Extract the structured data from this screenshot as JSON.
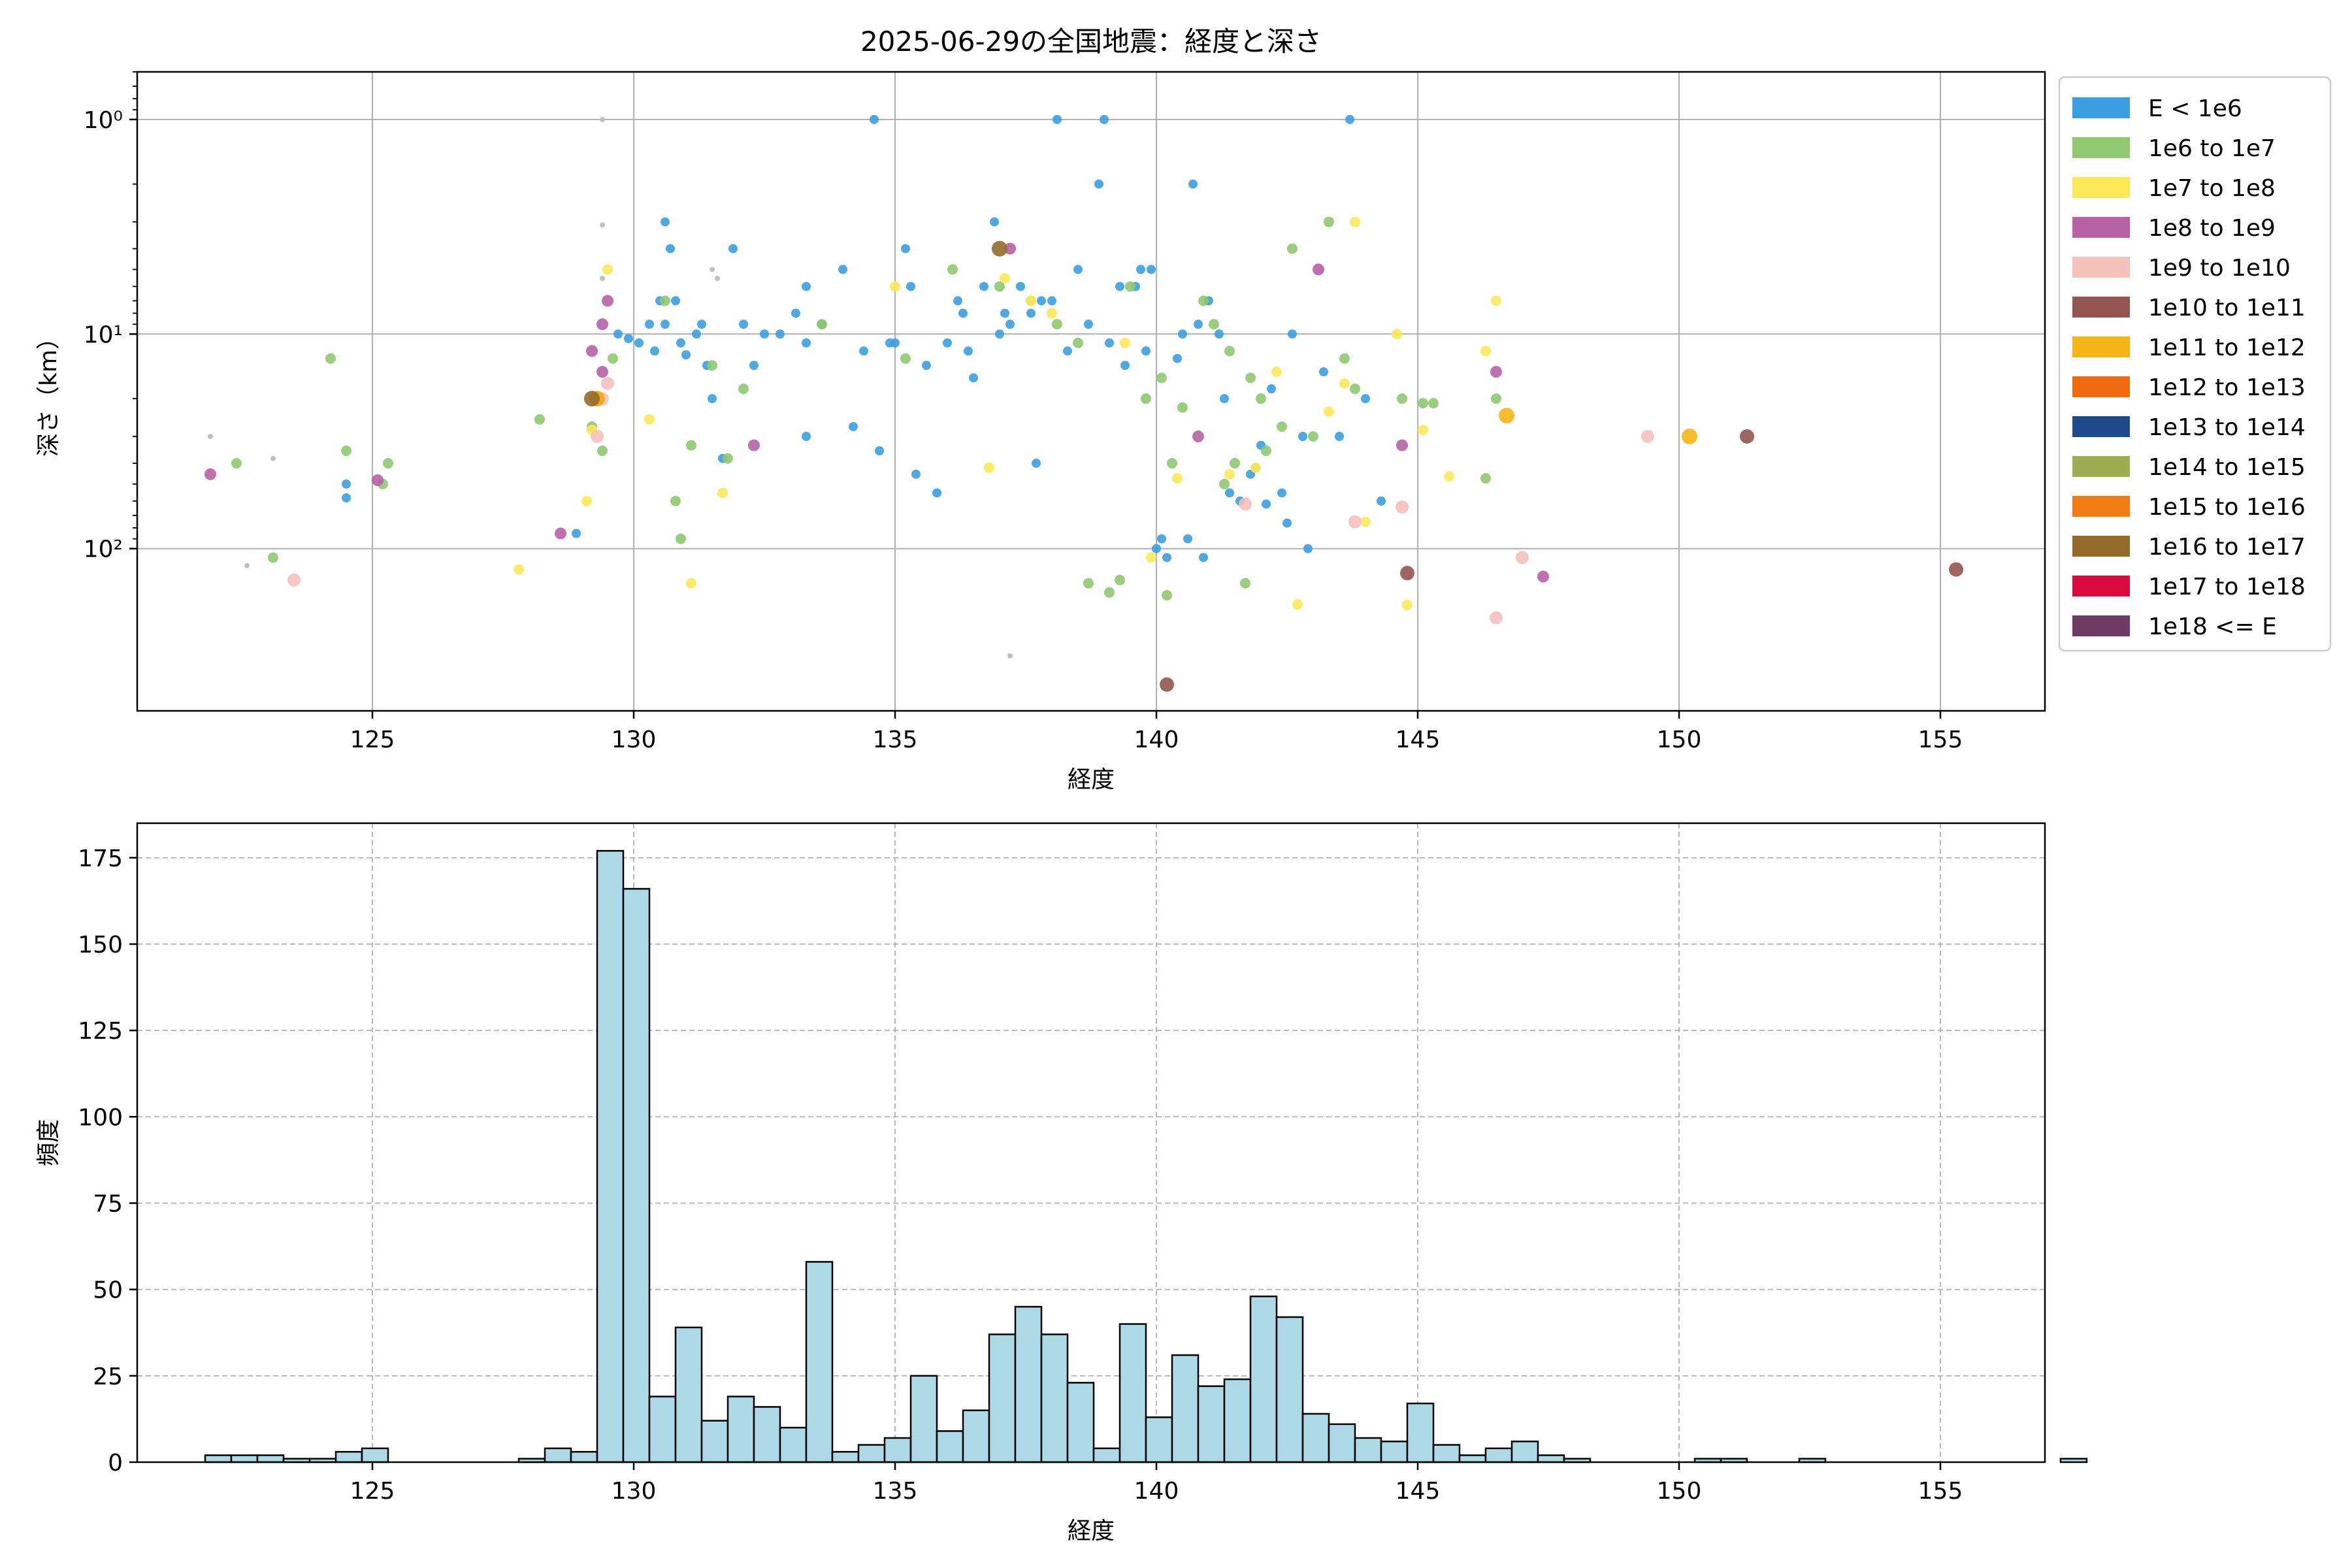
{
  "title": "2025-06-29の全国地震：経度と深さ",
  "chart_data": [
    {
      "type": "scatter",
      "title": "2025-06-29の全国地震：経度と深さ",
      "xlabel": "経度",
      "ylabel": "深さ（km）",
      "xlim": [
        120.5,
        157.0
      ],
      "ylim": [
        0.6,
        570
      ],
      "yscale": "log",
      "yaxis_inverted": true,
      "x_ticks": [
        "125",
        "130",
        "135",
        "140",
        "145",
        "150",
        "155"
      ],
      "y_ticks": [
        "10⁰",
        "10¹",
        "10²"
      ],
      "grid": true,
      "legend_position": "right, outside",
      "legend": [
        {
          "label": "E < 1e6",
          "color": "#3b9ede"
        },
        {
          "label": "1e6 to 1e7",
          "color": "#8fc870"
        },
        {
          "label": "1e7 to 1e8",
          "color": "#fde85a"
        },
        {
          "label": "1e8 to 1e9",
          "color": "#b862a6"
        },
        {
          "label": "1e9 to 1e10",
          "color": "#f5c1bb"
        },
        {
          "label": "1e10 to 1e11",
          "color": "#945550"
        },
        {
          "label": "1e11 to 1e12",
          "color": "#f7b417"
        },
        {
          "label": "1e12 to 1e13",
          "color": "#ef6a0f"
        },
        {
          "label": "1e13 to 1e14",
          "color": "#1e4a8d"
        },
        {
          "label": "1e14 to 1e15",
          "color": "#9ead53"
        },
        {
          "label": "1e15 to 1e16",
          "color": "#ef7d13"
        },
        {
          "label": "1e16 to 1e17",
          "color": "#946a2b"
        },
        {
          "label": "1e17 to 1e18",
          "color": "#d90a40"
        },
        {
          "label": "1e18 <= E",
          "color": "#703a66"
        }
      ],
      "small_gray_points": [
        [
          121.9,
          30
        ],
        [
          122.6,
          120
        ],
        [
          123.1,
          38
        ],
        [
          129.4,
          1.0
        ],
        [
          129.4,
          3.1
        ],
        [
          129.4,
          5.5
        ],
        [
          131.5,
          5
        ],
        [
          131.6,
          5.5
        ],
        [
          137.2,
          316
        ]
      ],
      "series": [
        {
          "label": "E < 1e6",
          "points": [
            [
              124.5,
              50
            ],
            [
              124.5,
              58
            ],
            [
              128.9,
              85
            ],
            [
              129.7,
              10
            ],
            [
              129.9,
              10.5
            ],
            [
              130.1,
              11
            ],
            [
              130.3,
              9
            ],
            [
              130.4,
              12
            ],
            [
              130.5,
              7
            ],
            [
              130.6,
              3
            ],
            [
              130.6,
              9
            ],
            [
              130.7,
              4
            ],
            [
              130.8,
              7
            ],
            [
              130.9,
              11
            ],
            [
              131.0,
              12.5
            ],
            [
              131.2,
              10
            ],
            [
              131.3,
              9
            ],
            [
              131.4,
              14
            ],
            [
              131.5,
              20
            ],
            [
              131.7,
              38
            ],
            [
              131.9,
              4
            ],
            [
              132.1,
              9
            ],
            [
              132.3,
              14
            ],
            [
              132.5,
              10
            ],
            [
              132.8,
              10
            ],
            [
              133.1,
              8
            ],
            [
              133.3,
              6
            ],
            [
              133.3,
              11
            ],
            [
              133.3,
              30
            ],
            [
              133.6,
              9
            ],
            [
              134.0,
              5
            ],
            [
              134.2,
              27
            ],
            [
              134.4,
              12
            ],
            [
              134.6,
              1.0
            ],
            [
              134.7,
              35
            ],
            [
              134.9,
              11
            ],
            [
              135.0,
              11
            ],
            [
              135.2,
              4
            ],
            [
              135.3,
              6
            ],
            [
              135.4,
              45
            ],
            [
              135.6,
              14
            ],
            [
              135.8,
              55
            ],
            [
              136.0,
              11
            ],
            [
              136.2,
              7
            ],
            [
              136.3,
              8
            ],
            [
              136.4,
              12
            ],
            [
              136.5,
              16
            ],
            [
              136.7,
              6
            ],
            [
              136.9,
              3
            ],
            [
              137.0,
              10
            ],
            [
              137.1,
              8
            ],
            [
              137.2,
              9
            ],
            [
              137.4,
              6
            ],
            [
              137.6,
              8
            ],
            [
              137.7,
              40
            ],
            [
              137.8,
              7
            ],
            [
              138.0,
              7
            ],
            [
              138.1,
              1.0
            ],
            [
              138.3,
              12
            ],
            [
              138.5,
              5
            ],
            [
              138.7,
              9
            ],
            [
              138.9,
              2
            ],
            [
              139.0,
              1.0
            ],
            [
              139.1,
              11
            ],
            [
              139.3,
              6
            ],
            [
              139.4,
              14
            ],
            [
              139.6,
              6
            ],
            [
              139.7,
              5
            ],
            [
              139.8,
              12
            ],
            [
              139.9,
              5
            ],
            [
              140.0,
              100
            ],
            [
              140.1,
              90
            ],
            [
              140.2,
              110
            ],
            [
              140.4,
              13
            ],
            [
              140.5,
              10
            ],
            [
              140.6,
              90
            ],
            [
              140.7,
              2
            ],
            [
              140.8,
              9
            ],
            [
              140.9,
              110
            ],
            [
              141.0,
              7
            ],
            [
              141.2,
              10
            ],
            [
              141.3,
              20
            ],
            [
              141.4,
              55
            ],
            [
              141.6,
              60
            ],
            [
              141.8,
              45
            ],
            [
              141.9,
              42
            ],
            [
              142.0,
              33
            ],
            [
              142.1,
              62
            ],
            [
              142.2,
              18
            ],
            [
              142.4,
              55
            ],
            [
              142.5,
              76
            ],
            [
              142.6,
              10
            ],
            [
              142.8,
              30
            ],
            [
              142.9,
              100
            ],
            [
              143.2,
              15
            ],
            [
              143.5,
              30
            ],
            [
              143.7,
              1.0
            ],
            [
              144.0,
              20
            ],
            [
              144.3,
              60
            ]
          ]
        },
        {
          "label": "1e6 to 1e7",
          "points": [
            [
              122.4,
              40
            ],
            [
              123.1,
              110
            ],
            [
              124.2,
              13
            ],
            [
              124.5,
              35
            ],
            [
              125.2,
              50
            ],
            [
              125.3,
              40
            ],
            [
              128.2,
              25
            ],
            [
              129.2,
              27
            ],
            [
              129.4,
              35
            ],
            [
              129.6,
              13
            ],
            [
              130.6,
              7
            ],
            [
              130.8,
              60
            ],
            [
              130.9,
              90
            ],
            [
              131.1,
              33
            ],
            [
              131.5,
              14
            ],
            [
              131.8,
              38
            ],
            [
              132.1,
              18
            ],
            [
              133.6,
              9
            ],
            [
              135.2,
              13
            ],
            [
              136.1,
              5
            ],
            [
              137.0,
              6
            ],
            [
              137.6,
              7
            ],
            [
              138.1,
              9
            ],
            [
              138.5,
              11
            ],
            [
              138.7,
              145
            ],
            [
              139.1,
              160
            ],
            [
              139.3,
              140
            ],
            [
              139.5,
              6
            ],
            [
              139.8,
              20
            ],
            [
              140.1,
              16
            ],
            [
              140.2,
              165
            ],
            [
              140.3,
              40
            ],
            [
              140.5,
              22
            ],
            [
              140.9,
              7
            ],
            [
              141.1,
              9
            ],
            [
              141.3,
              50
            ],
            [
              141.4,
              12
            ],
            [
              141.5,
              40
            ],
            [
              141.7,
              145
            ],
            [
              141.8,
              16
            ],
            [
              142.0,
              20
            ],
            [
              142.1,
              35
            ],
            [
              142.4,
              27
            ],
            [
              142.6,
              4
            ],
            [
              143.0,
              30
            ],
            [
              143.3,
              3
            ],
            [
              143.6,
              13
            ],
            [
              143.8,
              18
            ],
            [
              144.7,
              20
            ],
            [
              145.1,
              21
            ],
            [
              145.3,
              21
            ],
            [
              146.3,
              47
            ],
            [
              146.5,
              20
            ]
          ]
        },
        {
          "label": "1e7 to 1e8",
          "points": [
            [
              127.8,
              125
            ],
            [
              129.1,
              60
            ],
            [
              129.2,
              28
            ],
            [
              129.5,
              5
            ],
            [
              130.3,
              25
            ],
            [
              131.1,
              145
            ],
            [
              131.7,
              55
            ],
            [
              135.0,
              6
            ],
            [
              136.8,
              42
            ],
            [
              137.1,
              5.5
            ],
            [
              137.6,
              7
            ],
            [
              138.0,
              8
            ],
            [
              139.4,
              11
            ],
            [
              139.9,
              110
            ],
            [
              140.4,
              47
            ],
            [
              141.4,
              45
            ],
            [
              141.9,
              42
            ],
            [
              142.3,
              15
            ],
            [
              142.7,
              182
            ],
            [
              143.3,
              23
            ],
            [
              143.6,
              17
            ],
            [
              143.8,
              3
            ],
            [
              144.0,
              75
            ],
            [
              144.6,
              10
            ],
            [
              144.8,
              183
            ],
            [
              145.1,
              28
            ],
            [
              145.6,
              46
            ],
            [
              146.3,
              12
            ],
            [
              146.5,
              7
            ]
          ]
        },
        {
          "label": "1e8 to 1e9",
          "points": [
            [
              121.9,
              45
            ],
            [
              125.1,
              48
            ],
            [
              128.6,
              85
            ],
            [
              129.2,
              12
            ],
            [
              129.4,
              9
            ],
            [
              129.4,
              15
            ],
            [
              129.5,
              7
            ],
            [
              132.3,
              33
            ],
            [
              137.2,
              4
            ],
            [
              140.8,
              30
            ],
            [
              143.1,
              5
            ],
            [
              144.7,
              33
            ],
            [
              146.5,
              15
            ],
            [
              147.4,
              135
            ]
          ]
        },
        {
          "label": "1e9 to 1e10",
          "points": [
            [
              123.5,
              140
            ],
            [
              129.3,
              30
            ],
            [
              129.4,
              20
            ],
            [
              129.5,
              17
            ],
            [
              141.7,
              62
            ],
            [
              143.8,
              75
            ],
            [
              144.7,
              64
            ],
            [
              146.5,
              210
            ],
            [
              147.0,
              110
            ],
            [
              149.4,
              30
            ]
          ]
        },
        {
          "label": "1e10 to 1e11",
          "points": [
            [
              129.3,
              20
            ],
            [
              140.2,
              430
            ],
            [
              144.8,
              130
            ],
            [
              151.3,
              30
            ],
            [
              155.3,
              125
            ]
          ]
        },
        {
          "label": "1e11 to 1e12",
          "points": [
            [
              129.3,
              20
            ],
            [
              146.7,
              24
            ],
            [
              150.2,
              30
            ]
          ]
        },
        {
          "label": "1e16 to 1e17",
          "points": [
            [
              129.2,
              20
            ],
            [
              137.0,
              4
            ]
          ]
        }
      ]
    },
    {
      "type": "bar",
      "title": "",
      "xlabel": "経度",
      "ylabel": "頻度",
      "xlim": [
        120.5,
        157.0
      ],
      "ylim": [
        0,
        185
      ],
      "x_ticks": [
        "125",
        "130",
        "135",
        "140",
        "145",
        "150",
        "155"
      ],
      "y_ticks": [
        "0",
        "25",
        "50",
        "75",
        "100",
        "125",
        "150",
        "175"
      ],
      "grid": "dashed",
      "bin_start": 121.8,
      "bin_width": 0.5,
      "values": [
        2,
        2,
        2,
        1,
        1,
        3,
        4,
        0,
        0,
        0,
        0,
        0,
        1,
        4,
        3,
        177,
        166,
        19,
        39,
        12,
        19,
        16,
        10,
        58,
        3,
        5,
        7,
        25,
        9,
        15,
        37,
        45,
        37,
        23,
        4,
        40,
        13,
        31,
        22,
        24,
        48,
        42,
        14,
        11,
        7,
        6,
        17,
        5,
        2,
        4,
        6,
        2,
        1,
        0,
        0,
        0,
        0,
        1,
        1,
        0,
        0,
        1,
        0,
        0,
        0,
        0,
        0,
        0,
        0,
        0,
        0,
        1
      ]
    }
  ]
}
